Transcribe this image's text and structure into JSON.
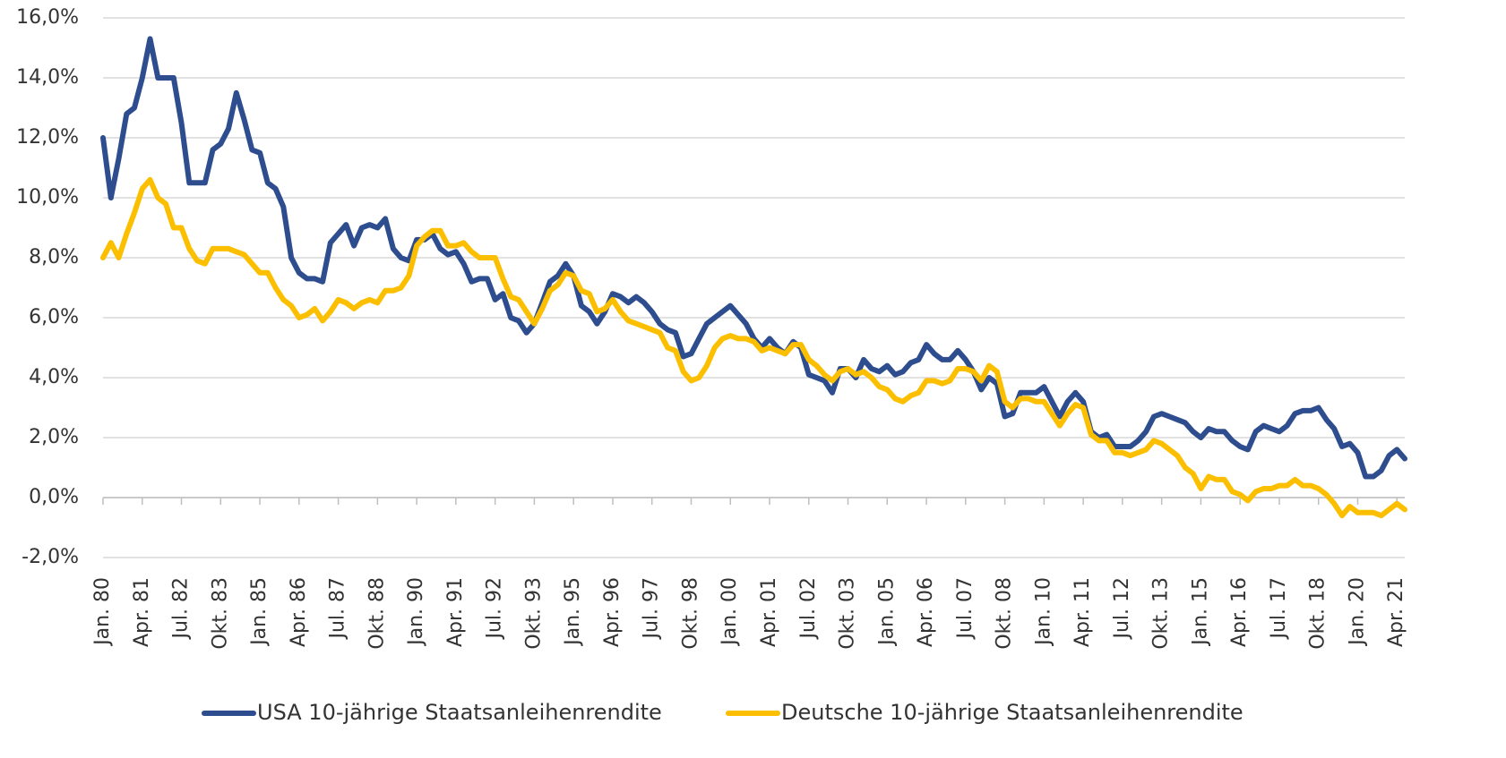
{
  "chart_data": {
    "type": "line",
    "categories": [
      "Jan. 80",
      null,
      null,
      null,
      null,
      "Apr. 81",
      null,
      null,
      null,
      null,
      "Jul. 82",
      null,
      null,
      null,
      null,
      "Okt. 83",
      null,
      null,
      null,
      null,
      "Jan. 85",
      null,
      null,
      null,
      null,
      "Apr. 86",
      null,
      null,
      null,
      null,
      "Jul. 87",
      null,
      null,
      null,
      null,
      "Okt. 88",
      null,
      null,
      null,
      null,
      "Jan. 90",
      null,
      null,
      null,
      null,
      "Apr. 91",
      null,
      null,
      null,
      null,
      "Jul. 92",
      null,
      null,
      null,
      null,
      "Okt. 93",
      null,
      null,
      null,
      null,
      "Jan. 95",
      null,
      null,
      null,
      null,
      "Apr. 96",
      null,
      null,
      null,
      null,
      "Jul. 97",
      null,
      null,
      null,
      null,
      "Okt. 98",
      null,
      null,
      null,
      null,
      "Jan. 00",
      null,
      null,
      null,
      null,
      "Apr. 01",
      null,
      null,
      null,
      null,
      "Jul. 02",
      null,
      null,
      null,
      null,
      "Okt. 03",
      null,
      null,
      null,
      null,
      "Jan. 05",
      null,
      null,
      null,
      null,
      "Apr. 06",
      null,
      null,
      null,
      null,
      "Jul. 07",
      null,
      null,
      null,
      null,
      "Okt. 08",
      null,
      null,
      null,
      null,
      "Jan. 10",
      null,
      null,
      null,
      null,
      "Apr. 11",
      null,
      null,
      null,
      null,
      "Jul. 12",
      null,
      null,
      null,
      null,
      "Okt. 13",
      null,
      null,
      null,
      null,
      "Jan. 15",
      null,
      null,
      null,
      null,
      "Apr. 16",
      null,
      null,
      null,
      null,
      "Jul. 17",
      null,
      null,
      null,
      null,
      "Okt. 18",
      null,
      null,
      null,
      null,
      "Jan. 20",
      null,
      null,
      null,
      null,
      "Apr. 21",
      null
    ],
    "series": [
      {
        "name": "USA 10-jährige Staatsanleihenrendite",
        "color": "#2e4d8f",
        "values": [
          12,
          10,
          11.3,
          12.8,
          13,
          14,
          15.3,
          14,
          14,
          14,
          12.5,
          10.5,
          10.5,
          10.5,
          11.6,
          11.8,
          12.3,
          13.5,
          12.6,
          11.6,
          11.5,
          10.5,
          10.3,
          9.7,
          8,
          7.5,
          7.3,
          7.3,
          7.2,
          8.5,
          8.8,
          9.1,
          8.4,
          9,
          9.1,
          9,
          9.3,
          8.3,
          8,
          7.9,
          8.6,
          8.6,
          8.8,
          8.3,
          8.1,
          8.2,
          7.8,
          7.2,
          7.3,
          7.3,
          6.6,
          6.8,
          6,
          5.9,
          5.5,
          5.8,
          6.5,
          7.2,
          7.4,
          7.8,
          7.4,
          6.4,
          6.2,
          5.8,
          6.2,
          6.8,
          6.7,
          6.5,
          6.7,
          6.5,
          6.2,
          5.8,
          5.6,
          5.5,
          4.7,
          4.8,
          5.3,
          5.8,
          6,
          6.2,
          6.4,
          6.1,
          5.8,
          5.3,
          5,
          5.3,
          5,
          4.8,
          5.2,
          5,
          4.1,
          4,
          3.9,
          3.5,
          4.3,
          4.3,
          4,
          4.6,
          4.3,
          4.2,
          4.4,
          4.1,
          4.2,
          4.5,
          4.6,
          5.1,
          4.8,
          4.6,
          4.6,
          4.9,
          4.6,
          4.2,
          3.6,
          4,
          3.8,
          2.7,
          2.8,
          3.5,
          3.5,
          3.5,
          3.7,
          3.2,
          2.7,
          3.2,
          3.5,
          3.2,
          2.2,
          2,
          2.1,
          1.7,
          1.7,
          1.7,
          1.9,
          2.2,
          2.7,
          2.8,
          2.7,
          2.6,
          2.5,
          2.2,
          2,
          2.3,
          2.2,
          2.2,
          1.9,
          1.7,
          1.6,
          2.2,
          2.4,
          2.3,
          2.2,
          2.4,
          2.8,
          2.9,
          2.9,
          3,
          2.6,
          2.3,
          1.7,
          1.8,
          1.5,
          0.7,
          0.7,
          0.9,
          1.4,
          1.6,
          1.3
        ]
      },
      {
        "name": "Deutsche 10-jährige Staatsanleihenrendite",
        "color": "#fbbf00",
        "values": [
          8,
          8.5,
          8,
          8.8,
          9.5,
          10.3,
          10.6,
          10,
          9.8,
          9,
          9,
          8.3,
          7.9,
          7.8,
          8.3,
          8.3,
          8.3,
          8.2,
          8.1,
          7.8,
          7.5,
          7.5,
          7,
          6.6,
          6.4,
          6,
          6.1,
          6.3,
          5.9,
          6.2,
          6.6,
          6.5,
          6.3,
          6.5,
          6.6,
          6.5,
          6.9,
          6.9,
          7,
          7.4,
          8.4,
          8.7,
          8.9,
          8.9,
          8.4,
          8.4,
          8.5,
          8.2,
          8,
          8,
          8,
          7.3,
          6.7,
          6.6,
          6.2,
          5.8,
          6.3,
          6.9,
          7.1,
          7.5,
          7.4,
          6.9,
          6.8,
          6.2,
          6.3,
          6.6,
          6.2,
          5.9,
          5.8,
          5.7,
          5.6,
          5.5,
          5,
          4.9,
          4.2,
          3.9,
          4,
          4.4,
          5,
          5.3,
          5.4,
          5.3,
          5.3,
          5.2,
          4.9,
          5,
          4.9,
          4.8,
          5.1,
          5.1,
          4.6,
          4.4,
          4.1,
          3.9,
          4.2,
          4.3,
          4.1,
          4.2,
          4,
          3.7,
          3.6,
          3.3,
          3.2,
          3.4,
          3.5,
          3.9,
          3.9,
          3.8,
          3.9,
          4.3,
          4.3,
          4.2,
          3.9,
          4.4,
          4.2,
          3.2,
          3,
          3.3,
          3.3,
          3.2,
          3.2,
          2.8,
          2.4,
          2.8,
          3.1,
          3,
          2.1,
          1.9,
          1.9,
          1.5,
          1.5,
          1.4,
          1.5,
          1.6,
          1.9,
          1.8,
          1.6,
          1.4,
          1,
          0.8,
          0.3,
          0.7,
          0.6,
          0.6,
          0.2,
          0.1,
          -0.1,
          0.2,
          0.3,
          0.3,
          0.4,
          0.4,
          0.6,
          0.4,
          0.4,
          0.3,
          0.1,
          -0.2,
          -0.6,
          -0.3,
          -0.5,
          -0.5,
          -0.5,
          -0.6,
          -0.4,
          -0.2,
          -0.4
        ]
      }
    ],
    "ylim": [
      -2,
      16
    ],
    "yticks": [
      {
        "value": -2,
        "label": "-2,0%"
      },
      {
        "value": 0,
        "label": "0,0%"
      },
      {
        "value": 2,
        "label": "2,0%"
      },
      {
        "value": 4,
        "label": "4,0%"
      },
      {
        "value": 6,
        "label": "6,0%"
      },
      {
        "value": 8,
        "label": "8,0%"
      },
      {
        "value": 10,
        "label": "10,0%"
      },
      {
        "value": 12,
        "label": "12,0%"
      },
      {
        "value": 14,
        "label": "14,0%"
      },
      {
        "value": 16,
        "label": "16,0%"
      }
    ],
    "grid": true,
    "legend": "bottom"
  }
}
